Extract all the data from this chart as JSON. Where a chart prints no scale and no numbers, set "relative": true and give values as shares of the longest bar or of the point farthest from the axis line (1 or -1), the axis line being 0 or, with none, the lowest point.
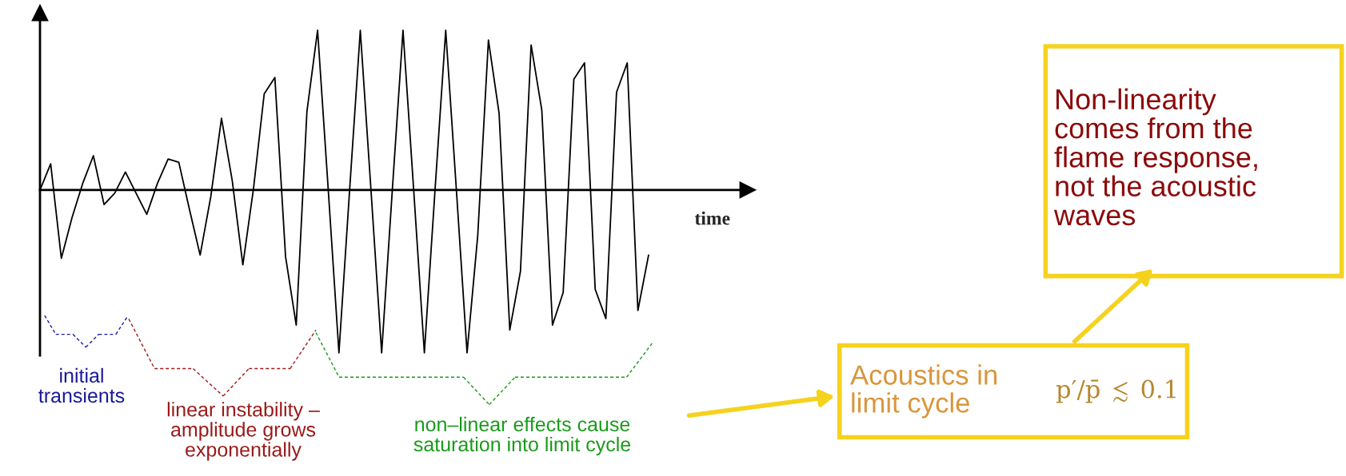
{
  "chart_data": {
    "type": "line",
    "relative": true,
    "xlabel": "time",
    "categories": [
      null,
      null,
      null,
      null,
      null,
      null,
      null,
      null,
      null,
      null,
      null,
      null,
      null,
      null,
      null,
      null,
      null,
      null,
      null,
      null,
      null,
      null,
      null,
      null,
      null,
      null,
      null,
      null,
      null,
      null,
      null,
      null,
      null,
      null,
      null,
      null,
      null,
      null,
      null,
      null,
      null,
      null,
      null,
      null,
      null,
      null,
      null,
      null,
      null,
      null,
      null,
      null,
      null,
      null,
      null,
      null,
      null,
      null
    ],
    "series": [
      {
        "color": "#000000",
        "values": [
          0,
          0.16,
          -0.42,
          -0.17,
          0.04,
          0.21,
          -0.09,
          -0.02,
          0.11,
          -0.02,
          -0.15,
          0.04,
          0.19,
          0.17,
          -0.12,
          -0.4,
          -0.04,
          0.44,
          0.06,
          -0.46,
          0.01,
          0.59,
          0.69,
          -0.41,
          -0.83,
          0.48,
          0.98,
          0,
          -1,
          0,
          0.98,
          0,
          -1,
          0,
          0.98,
          0,
          -1,
          0,
          0.98,
          0,
          -1,
          -0.28,
          0.92,
          0.47,
          -0.86,
          -0.5,
          0.89,
          0.49,
          -0.83,
          -0.63,
          0.68,
          0.78,
          -0.61,
          -0.79,
          0.6,
          0.78,
          -0.74,
          -0.4
        ]
      }
    ],
    "annotations": [
      "initial\ntransients",
      "linear instability –\namplitude grows\nexponentially",
      "non–linear effects cause\nsaturation into limit cycle",
      "Non-linearity\ncomes from the\nflame response,\nnot the acoustic\nwaves",
      "Acoustics in\nlimit cycle",
      "p′/p̄ ≲ 0.1"
    ]
  }
}
